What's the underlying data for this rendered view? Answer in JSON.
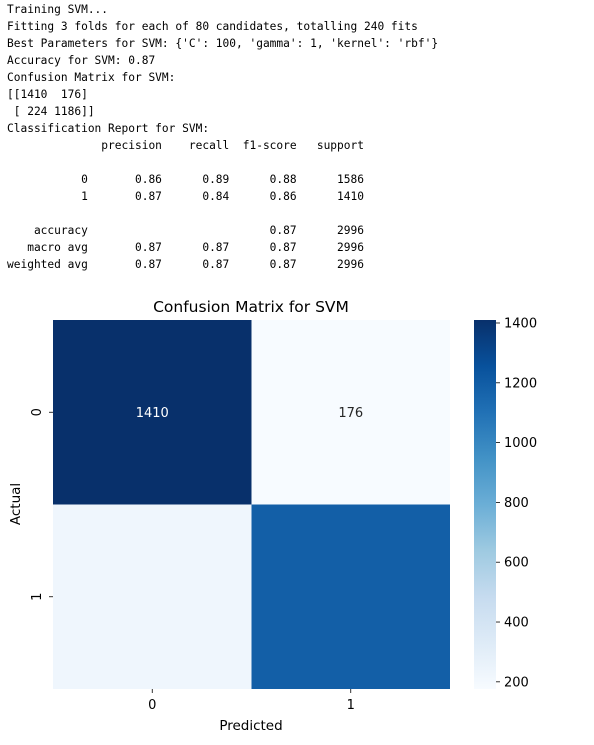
{
  "console_output": [
    "Training SVM...",
    "Fitting 3 folds for each of 80 candidates, totalling 240 fits",
    "Best Parameters for SVM: {'C': 100, 'gamma': 1, 'kernel': 'rbf'}",
    "Accuracy for SVM: 0.87",
    "Confusion Matrix for SVM:",
    "[[1410  176]",
    " [ 224 1186]]",
    "Classification Report for SVM:",
    "              precision    recall  f1-score   support",
    "",
    "           0       0.86      0.89      0.88      1586",
    "           1       0.87      0.84      0.86      1410",
    "",
    "    accuracy                           0.87      2996",
    "   macro avg       0.87      0.87      0.87      2996",
    "weighted avg       0.87      0.87      0.87      2996"
  ],
  "chart_data": {
    "type": "heatmap",
    "title": "Confusion Matrix for SVM",
    "xlabel": "Predicted",
    "ylabel": "Actual",
    "x_categories": [
      "0",
      "1"
    ],
    "y_categories": [
      "0",
      "1"
    ],
    "values": [
      [
        1410,
        176
      ],
      [
        224,
        1186
      ]
    ],
    "annotations": [
      [
        "1410",
        "176"
      ],
      [
        "",
        ""
      ]
    ],
    "colormap": "Blues",
    "colorbar": {
      "range": [
        176,
        1410
      ],
      "ticks": [
        200,
        400,
        600,
        800,
        1000,
        1200,
        1400
      ],
      "tick_labels": [
        "200",
        "400",
        "600",
        "800",
        "1000",
        "1200",
        "1400"
      ]
    },
    "colors": {
      "low": "#f7fbff",
      "high": "#08306b",
      "annotation_light": "#ffffff",
      "annotation_dark": "#262626"
    }
  }
}
